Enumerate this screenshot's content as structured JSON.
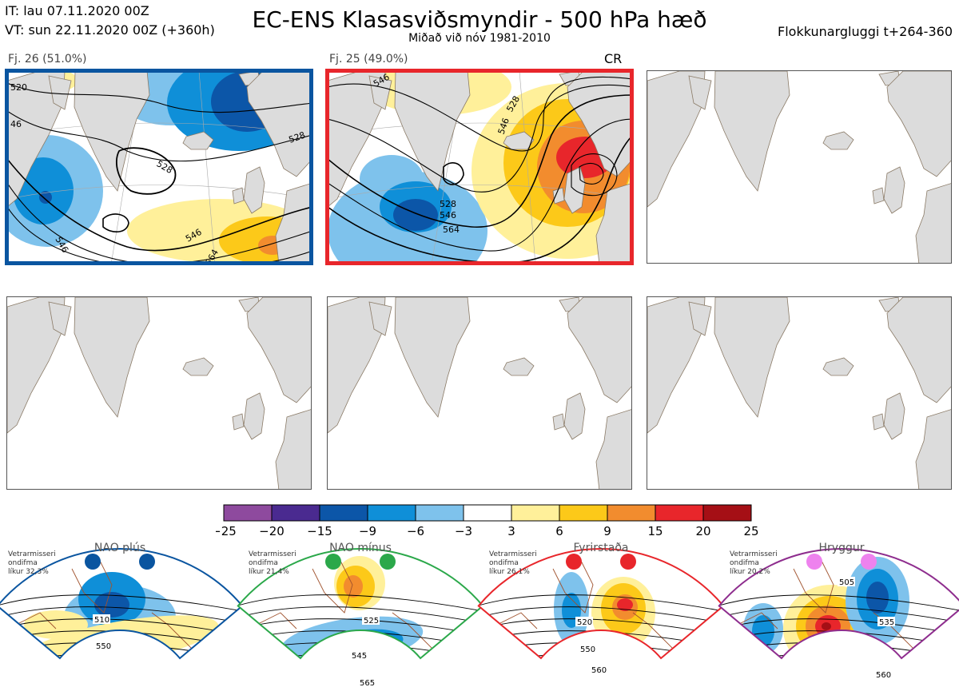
{
  "header": {
    "issue_time": "IT: lau 07.11.2020 00Z",
    "valid_time": "VT: sun 22.11.2020 00Z  (+360h)",
    "title": "EC-ENS Klasasviðsmyndir - 500 hPa hæð",
    "subtitle": "Miðað við nóv 1981-2010",
    "cluster_window": "Flokkunargluggi t+264-360"
  },
  "clusters": [
    {
      "label": "Fj. 26 (51.0%)",
      "frame_color": "#0a55a0",
      "contour_labels": [
        "520",
        "528",
        "528",
        "546",
        "546",
        "564",
        "46"
      ]
    },
    {
      "label": "Fj. 25 (49.0%)",
      "frame_color": "#e8262b",
      "tag": "CR",
      "contour_labels": [
        "546",
        "528",
        "528",
        "546",
        "564",
        "546"
      ]
    }
  ],
  "colorbar": {
    "ticks": [
      "−25",
      "−20",
      "−15",
      "−9",
      "−6",
      "−3",
      "3",
      "6",
      "9",
      "15",
      "20",
      "25"
    ],
    "colors": [
      "#8e4a9e",
      "#4a2a90",
      "#0c56a8",
      "#0f8fd8",
      "#7ec2ec",
      "#ffffff",
      "#fff09a",
      "#fcc919",
      "#f28c2e",
      "#e8262b",
      "#a50f15"
    ]
  },
  "regimes": [
    {
      "name": "NAO plús",
      "note_lines": [
        "Vetrarmisseri",
        "ondifma",
        "líkur 32,3%"
      ],
      "color": "#0a55a0",
      "dot_color": "#0a55a0",
      "labels": [
        "510",
        "550"
      ]
    },
    {
      "name": "NAO mínus",
      "note_lines": [
        "Vetrarmisseri",
        "ondifma",
        "líkur 21,4%"
      ],
      "color": "#2ba84a",
      "dot_color": "#2ba84a",
      "labels": [
        "525",
        "545",
        "565"
      ]
    },
    {
      "name": "Fyrirstaða",
      "note_lines": [
        "Vetrarmisseri",
        "ondifma",
        "líkur 26,1%"
      ],
      "color": "#e8262b",
      "dot_color": "#e8262b",
      "labels": [
        "520",
        "550",
        "560"
      ]
    },
    {
      "name": "Hryggur",
      "note_lines": [
        "Vetrarmisseri",
        "ondifma",
        "líkur 20,2%"
      ],
      "color": "#8e2d8e",
      "dot_color": "#ee82ee",
      "labels": [
        "505",
        "535",
        "560"
      ]
    }
  ]
}
